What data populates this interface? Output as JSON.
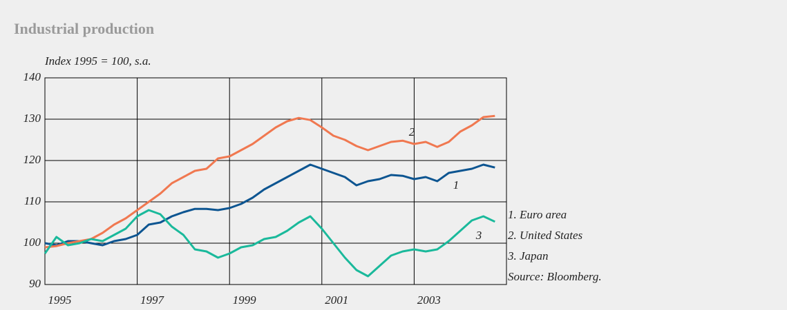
{
  "chart_data": {
    "type": "line",
    "title": "Industrial production",
    "subtitle": "Index 1995 = 100, s.a.",
    "source": "Source: Bloomberg.",
    "xlim": [
      1995,
      2005
    ],
    "xticks": [
      {
        "value": 1995.5,
        "label": "1995"
      },
      {
        "value": 1997.5,
        "label": "1997"
      },
      {
        "value": 1999.5,
        "label": "1999"
      },
      {
        "value": 2001.5,
        "label": "2001"
      },
      {
        "value": 2003.5,
        "label": "2003"
      }
    ],
    "xgrid_lines": [
      1997,
      1999,
      2001,
      2003
    ],
    "ylim": [
      90,
      140
    ],
    "yticks": [
      90,
      100,
      110,
      120,
      130,
      140
    ],
    "grid": true,
    "legend": "right",
    "x": [
      1995,
      1995.25,
      1995.5,
      1995.75,
      1996,
      1996.25,
      1996.5,
      1996.75,
      1997,
      1997.25,
      1997.5,
      1997.75,
      1998,
      1998.25,
      1998.5,
      1998.75,
      1999,
      1999.25,
      1999.5,
      1999.75,
      2000,
      2000.25,
      2000.5,
      2000.75,
      2001,
      2001.25,
      2001.5,
      2001.75,
      2002,
      2002.25,
      2002.5,
      2002.75,
      2003,
      2003.25,
      2003.5,
      2003.75,
      2004,
      2004.25,
      2004.5,
      2004.75
    ],
    "series": [
      {
        "name": "1. Euro area",
        "label": "1",
        "color": "#0d5591",
        "values": [
          100,
          99.5,
          100.5,
          100.5,
          100,
          99.5,
          100.5,
          101,
          102,
          104.5,
          105,
          106.5,
          107.5,
          108.3,
          108.3,
          108,
          108.5,
          109.5,
          111,
          113,
          114.5,
          116,
          117.5,
          119,
          118,
          117,
          116,
          114,
          115,
          115.5,
          116.5,
          116.3,
          115.5,
          116,
          115,
          117,
          117.5,
          118,
          119,
          118.3
        ]
      },
      {
        "name": "2. United States",
        "label": "2",
        "color": "#f07850",
        "values": [
          99,
          99.3,
          100,
          100.5,
          101,
          102.5,
          104.5,
          106,
          108,
          110,
          112,
          114.5,
          116,
          117.5,
          118,
          120.5,
          121,
          122.5,
          124,
          126,
          128,
          129.5,
          130.3,
          129.8,
          128,
          126,
          125,
          123.5,
          122.5,
          123.5,
          124.5,
          124.8,
          124,
          124.5,
          123.3,
          124.5,
          127,
          128.5,
          130.5,
          130.8
        ]
      },
      {
        "name": "3. Japan",
        "label": "3",
        "color": "#1ab99b",
        "values": [
          97.5,
          101.5,
          99.5,
          100,
          101,
          100.5,
          102,
          103.5,
          106.5,
          108,
          107,
          104,
          102,
          98.5,
          98,
          96.5,
          97.5,
          99,
          99.5,
          101,
          101.5,
          103,
          105,
          106.5,
          103.5,
          100,
          96.5,
          93.5,
          92,
          94.5,
          97,
          98,
          98.5,
          98,
          98.5,
          100.5,
          103,
          105.5,
          106.5,
          105.2
        ]
      }
    ]
  }
}
